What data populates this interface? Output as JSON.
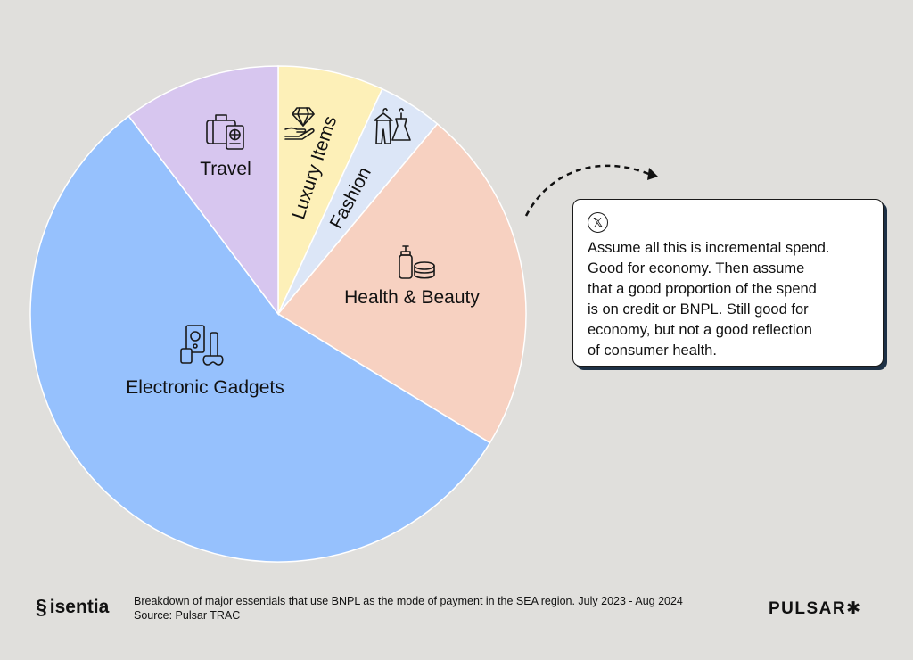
{
  "chart_data": {
    "type": "pie",
    "slices": [
      {
        "name": "Travel",
        "value": 10.3,
        "color": "#d7c6ef",
        "icon": "luggage-passport-icon"
      },
      {
        "name": "Luxury Items",
        "value": 6.9,
        "color": "#fdf0b8",
        "icon": "diamond-hand-icon"
      },
      {
        "name": "Fashion",
        "value": 4.2,
        "color": "#dce6f7",
        "icon": "clothes-hanger-icon"
      },
      {
        "name": "Health & Beauty",
        "value": 22.6,
        "color": "#f7d1c1",
        "icon": "cosmetics-icon"
      },
      {
        "name": "Electronic Gadgets",
        "value": 56.0,
        "color": "#96c1fd",
        "icon": "electronics-icon"
      }
    ]
  },
  "quote": {
    "icon": "x-logo-icon",
    "x_glyph": "𝕏",
    "text": "Assume all this is incremental spend.\nGood for economy. Then assume\nthat a good proportion of the spend\nis on credit or BNPL. Still good for\neconomy, but not a good reflection\nof consumer health."
  },
  "footer": {
    "brand": "isentia",
    "caption_line1": "Breakdown of major essentials that use BNPL as the mode of payment in the SEA region. July 2023 - Aug 2024",
    "caption_line2": "Source: Pulsar TRAC",
    "partner": "PULSAR✱"
  },
  "colors": {
    "background": "#e0dfdc",
    "box_shadow": "#1e3146"
  }
}
